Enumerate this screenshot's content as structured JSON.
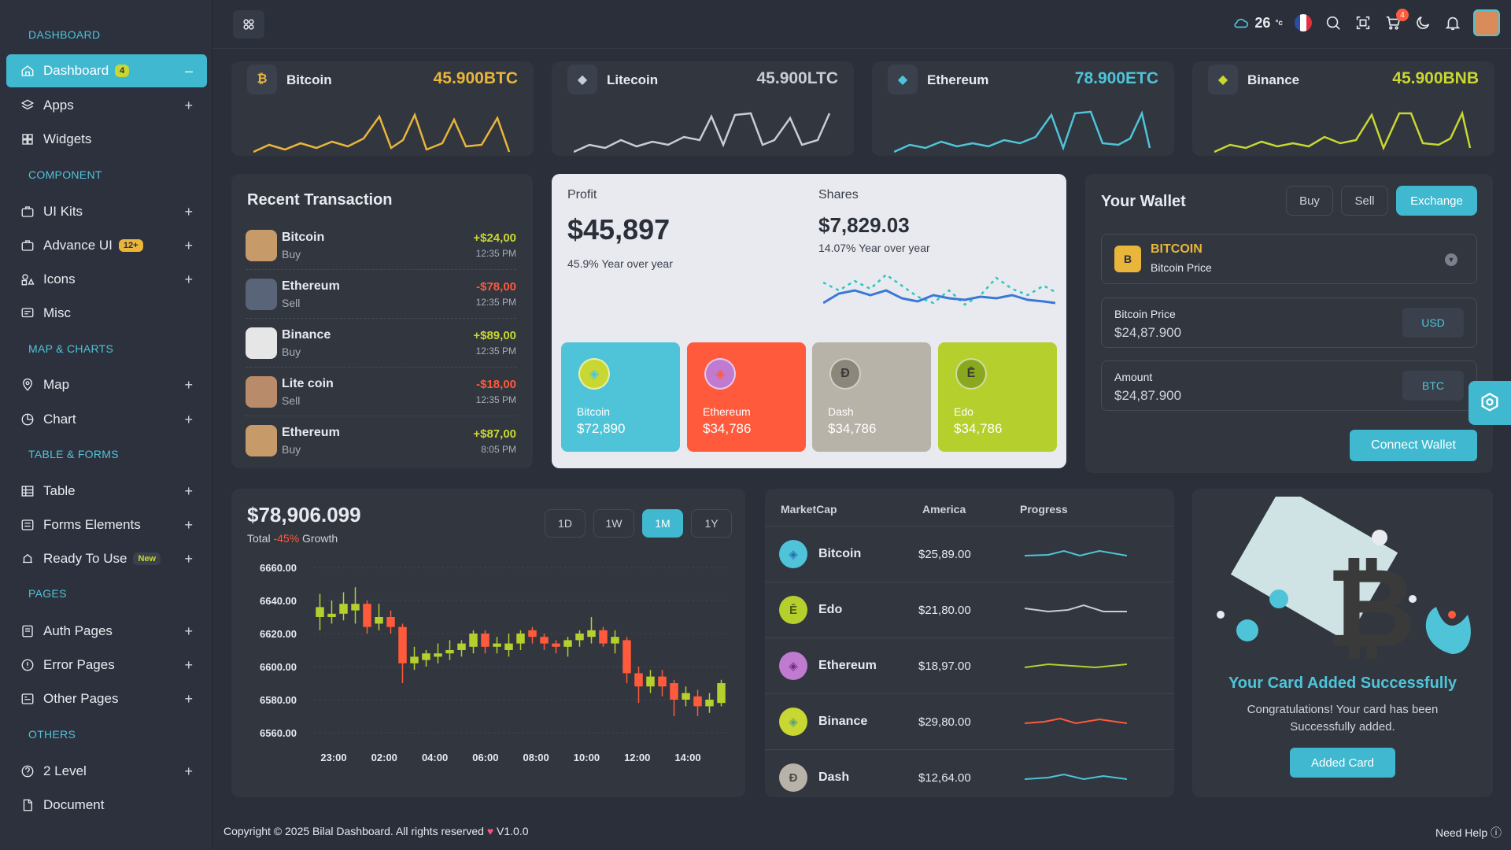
{
  "sidebar": {
    "sections": [
      "DASHBOARD",
      "COMPONENT",
      "MAP & CHARTS",
      "TABLE & FORMS",
      "PAGES",
      "OTHERS"
    ],
    "items": [
      {
        "label": "Dashboard",
        "badge": "4",
        "icon": "home-icon"
      },
      {
        "label": "Apps",
        "icon": "layers-icon"
      },
      {
        "label": "Widgets",
        "icon": "widgets-icon"
      },
      {
        "label": "UI Kits",
        "icon": "briefcase-icon"
      },
      {
        "label": "Advance UI",
        "badge": "12+",
        "icon": "briefcase-icon"
      },
      {
        "label": "Icons",
        "icon": "shapes-icon"
      },
      {
        "label": "Misc",
        "icon": "misc-icon"
      },
      {
        "label": "Map",
        "icon": "map-pin-icon"
      },
      {
        "label": "Chart",
        "icon": "pie-chart-icon"
      },
      {
        "label": "Table",
        "icon": "table-icon"
      },
      {
        "label": "Forms Elements",
        "icon": "forms-icon"
      },
      {
        "label": "Ready To Use",
        "badge": "New",
        "icon": "ready-icon"
      },
      {
        "label": "Auth Pages",
        "icon": "auth-icon"
      },
      {
        "label": "Error Pages",
        "icon": "error-icon"
      },
      {
        "label": "Other Pages",
        "icon": "pages-icon"
      },
      {
        "label": "2 Level",
        "icon": "level-icon"
      },
      {
        "label": "Document",
        "icon": "doc-icon"
      }
    ],
    "collapse_symbol": "–",
    "expand_symbol": "+"
  },
  "topbar": {
    "temperature": "26",
    "temp_unit": "°c",
    "cart_count": "4"
  },
  "coins": [
    {
      "name": "Bitcoin",
      "value": "45.900BTC",
      "icon_glyph": "₿",
      "color": "#e9b53a"
    },
    {
      "name": "Litecoin",
      "value": "45.900LTC",
      "icon_glyph": "◆",
      "color": "#c9ccd3"
    },
    {
      "name": "Ethereum",
      "value": "78.900ETC",
      "icon_glyph": "◆",
      "color": "#4fc4d9"
    },
    {
      "name": "Binance",
      "value": "45.900BNB",
      "icon_glyph": "◆",
      "color": "#c8d731"
    }
  ],
  "recent": {
    "title": "Recent Transaction",
    "rows": [
      {
        "name": "Bitcoin",
        "type": "Buy",
        "amount": "+$24,00",
        "time": "12:35 PM",
        "positive": true
      },
      {
        "name": "Ethereum",
        "type": "Sell",
        "amount": "-$78,00",
        "time": "12:35 PM",
        "positive": false
      },
      {
        "name": "Binance",
        "type": "Buy",
        "amount": "+$89,00",
        "time": "12:35 PM",
        "positive": true
      },
      {
        "name": "Lite coin",
        "type": "Sell",
        "amount": "-$18,00",
        "time": "12:35 PM",
        "positive": false
      },
      {
        "name": "Ethereum",
        "type": "Buy",
        "amount": "+$87,00",
        "time": "8:05 PM",
        "positive": true
      }
    ]
  },
  "profit": {
    "label": "Profit",
    "value": "$45,897",
    "sub": "45.9% Year over year",
    "shares_label": "Shares",
    "shares_value": "$7,829.03",
    "shares_sub": "14.07% Year over year",
    "tiles": [
      {
        "name": "Bitcoin",
        "value": "$72,890",
        "color": "#4fc4d9",
        "glyph": "◈"
      },
      {
        "name": "Ethereum",
        "value": "$34,786",
        "color": "#ff5a3c",
        "glyph": "◈"
      },
      {
        "name": "Dash",
        "value": "$34,786",
        "color": "#b8b3a8",
        "glyph": "Đ"
      },
      {
        "name": "Edo",
        "value": "$34,786",
        "color": "#b5cf2d",
        "glyph": "Ē"
      }
    ]
  },
  "wallet": {
    "title": "Your Wallet",
    "buttons": [
      "Buy",
      "Sell",
      "Exchange"
    ],
    "coin_name": "BITCOIN",
    "coin_sub": "Bitcoin Price",
    "coin_glyph": "B",
    "price_label": "Bitcoin Price",
    "price_value": "$24,87.900",
    "price_currency": "USD",
    "amount_label": "Amount",
    "amount_value": "$24,87.900",
    "amount_currency": "BTC",
    "connect_label": "Connect Wallet"
  },
  "candles": {
    "total": "$78,906.099",
    "total_prefix": "Total",
    "growth": "-45%",
    "growth_suffix": "Growth",
    "ranges": [
      "1D",
      "1W",
      "1M",
      "1Y"
    ],
    "active_range": "1M"
  },
  "chart_data": {
    "type": "candlestick",
    "ylim": [
      6560,
      6660
    ],
    "y_ticks": [
      "6660.00",
      "6640.00",
      "6620.00",
      "6600.00",
      "6580.00",
      "6560.00"
    ],
    "x_ticks": [
      "23:00",
      "02:00",
      "04:00",
      "06:00",
      "08:00",
      "10:00",
      "12:00",
      "14:00"
    ],
    "series": [
      {
        "open": 6630,
        "close": 6636,
        "high": 6644,
        "low": 6622
      },
      {
        "open": 6630,
        "close": 6632,
        "high": 6640,
        "low": 6626
      },
      {
        "open": 6632,
        "close": 6638,
        "high": 6645,
        "low": 6628
      },
      {
        "open": 6634,
        "close": 6638,
        "high": 6648,
        "low": 6626
      },
      {
        "open": 6638,
        "close": 6624,
        "high": 6640,
        "low": 6620
      },
      {
        "open": 6626,
        "close": 6630,
        "high": 6638,
        "low": 6622
      },
      {
        "open": 6630,
        "close": 6624,
        "high": 6634,
        "low": 6620
      },
      {
        "open": 6624,
        "close": 6602,
        "high": 6626,
        "low": 6590
      },
      {
        "open": 6602,
        "close": 6606,
        "high": 6612,
        "low": 6598
      },
      {
        "open": 6604,
        "close": 6608,
        "high": 6610,
        "low": 6600
      },
      {
        "open": 6606,
        "close": 6608,
        "high": 6614,
        "low": 6602
      },
      {
        "open": 6608,
        "close": 6610,
        "high": 6616,
        "low": 6604
      },
      {
        "open": 6610,
        "close": 6614,
        "high": 6616,
        "low": 6606
      },
      {
        "open": 6612,
        "close": 6620,
        "high": 6622,
        "low": 6608
      },
      {
        "open": 6620,
        "close": 6612,
        "high": 6622,
        "low": 6608
      },
      {
        "open": 6612,
        "close": 6614,
        "high": 6618,
        "low": 6608
      },
      {
        "open": 6610,
        "close": 6614,
        "high": 6620,
        "low": 6606
      },
      {
        "open": 6614,
        "close": 6620,
        "high": 6622,
        "low": 6610
      },
      {
        "open": 6622,
        "close": 6618,
        "high": 6624,
        "low": 6614
      },
      {
        "open": 6618,
        "close": 6614,
        "high": 6620,
        "low": 6610
      },
      {
        "open": 6614,
        "close": 6612,
        "high": 6616,
        "low": 6608
      },
      {
        "open": 6612,
        "close": 6616,
        "high": 6618,
        "low": 6606
      },
      {
        "open": 6616,
        "close": 6620,
        "high": 6622,
        "low": 6612
      },
      {
        "open": 6618,
        "close": 6622,
        "high": 6630,
        "low": 6614
      },
      {
        "open": 6622,
        "close": 6614,
        "high": 6624,
        "low": 6612
      },
      {
        "open": 6614,
        "close": 6618,
        "high": 6622,
        "low": 6608
      },
      {
        "open": 6616,
        "close": 6596,
        "high": 6618,
        "low": 6590
      },
      {
        "open": 6596,
        "close": 6588,
        "high": 6600,
        "low": 6578
      },
      {
        "open": 6588,
        "close": 6594,
        "high": 6598,
        "low": 6584
      },
      {
        "open": 6594,
        "close": 6588,
        "high": 6598,
        "low": 6582
      },
      {
        "open": 6590,
        "close": 6580,
        "high": 6592,
        "low": 6570
      },
      {
        "open": 6580,
        "close": 6584,
        "high": 6588,
        "low": 6576
      },
      {
        "open": 6582,
        "close": 6576,
        "high": 6586,
        "low": 6570
      },
      {
        "open": 6576,
        "close": 6580,
        "high": 6584,
        "low": 6572
      },
      {
        "open": 6578,
        "close": 6590,
        "high": 6592,
        "low": 6576
      }
    ]
  },
  "marketcap": {
    "headers": [
      "MarketCap",
      "America",
      "Progress"
    ],
    "rows": [
      {
        "name": "Bitcoin",
        "value": "$25,89.00",
        "color": "#4fc4d9",
        "line": "#4fc4d9",
        "glyph": "◈"
      },
      {
        "name": "Edo",
        "value": "$21,80.00",
        "color": "#b5cf2d",
        "line": "#c9ccd3",
        "glyph": "Ē"
      },
      {
        "name": "Ethereum",
        "value": "$18,97.00",
        "color": "#c07bd1",
        "line": "#b5cf2d",
        "glyph": "◈"
      },
      {
        "name": "Binance",
        "value": "$29,80.00",
        "color": "#c8d731",
        "line": "#ff5a3c",
        "glyph": "◈"
      },
      {
        "name": "Dash",
        "value": "$12,64.00",
        "color": "#b8b3a8",
        "line": "#4fc4d9",
        "glyph": "Đ"
      }
    ]
  },
  "added_card": {
    "title": "Your Card Added Successfully",
    "body": "Congratulations! Your card has been Successfully added.",
    "button": "Added Card"
  },
  "footer": {
    "copyright": "Copyright © 2025 Bilal Dashboard. All rights reserved",
    "version": "V1.0.0",
    "help": "Need Help"
  }
}
